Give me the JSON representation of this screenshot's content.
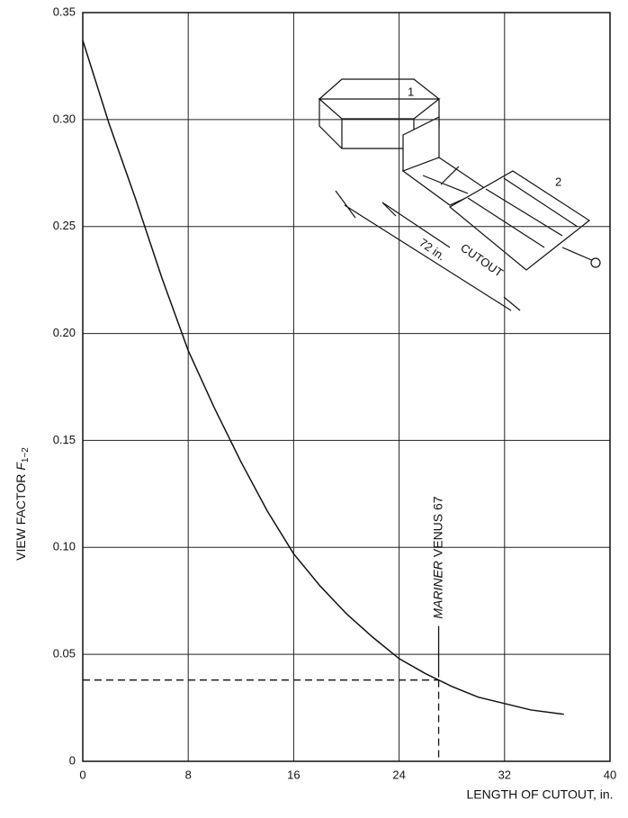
{
  "chart_data": {
    "type": "line",
    "xlabel": "LENGTH OF CUTOUT, in.",
    "ylabel": "VIEW FACTOR",
    "ylabel_symbol": "F",
    "ylabel_subscript": "1−2",
    "x": [
      0,
      2,
      4,
      6,
      8,
      10,
      12,
      14,
      16,
      18,
      20,
      22,
      24,
      26,
      28,
      30,
      32,
      34,
      36.5
    ],
    "series": [
      {
        "color": "#111111",
        "values": [
          0.337,
          0.298,
          0.263,
          0.226,
          0.192,
          0.165,
          0.14,
          0.117,
          0.097,
          0.082,
          0.069,
          0.058,
          0.048,
          0.041,
          0.035,
          0.03,
          0.027,
          0.024,
          0.022
        ]
      }
    ],
    "xlim": [
      0,
      40
    ],
    "xticks": [
      0,
      8,
      16,
      24,
      32,
      40
    ],
    "ylim": [
      0,
      0.35
    ],
    "yticks": [
      0,
      0.05,
      {
        "value": 0.1,
        "label": "0.10"
      },
      0.15,
      {
        "value": 0.2,
        "label": "0.20"
      },
      0.25,
      {
        "value": 0.3,
        "label": "0.30"
      },
      0.35
    ],
    "grid": true,
    "reference": {
      "x": 27,
      "y": 0.038,
      "label_italic": "MARINER",
      "label": "VENUS 67"
    },
    "inset_labels": {
      "surface_1": "1",
      "surface_2": "2",
      "length": "72 in.",
      "cutout": "CUTOUT"
    }
  }
}
